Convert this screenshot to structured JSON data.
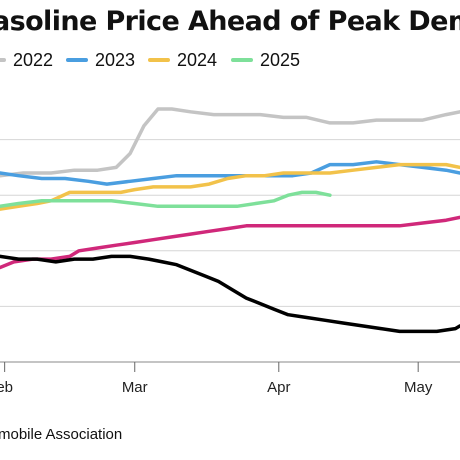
{
  "chart_data": {
    "type": "line",
    "title": "asoline Price Ahead of Peak Demand",
    "xlabel": "",
    "ylabel": "",
    "x_tick_labels": [
      "eb",
      "Mar",
      "Apr",
      "May"
    ],
    "x_tick_days": [
      30,
      58,
      89,
      119
    ],
    "x_range_days": [
      29,
      128
    ],
    "y_range": [
      0,
      100
    ],
    "grid": true,
    "legend_position": "top",
    "series": [
      {
        "name": "2022",
        "color": "#c4c4c4",
        "x": [
          29,
          34,
          40,
          45,
          50,
          54,
          57,
          60,
          63,
          66,
          70,
          75,
          80,
          85,
          90,
          95,
          100,
          105,
          110,
          115,
          120,
          125,
          128
        ],
        "y": [
          67,
          68,
          68,
          69,
          69,
          70,
          75,
          85,
          91,
          91,
          90,
          89,
          89,
          89,
          88,
          88,
          86,
          86,
          87,
          87,
          87,
          89,
          90
        ]
      },
      {
        "name": "2023",
        "color": "#4a9ee0",
        "x": [
          29,
          33,
          38,
          43,
          48,
          52,
          57,
          62,
          67,
          72,
          77,
          82,
          87,
          92,
          96,
          100,
          105,
          110,
          115,
          120,
          125,
          128
        ],
        "y": [
          68,
          67,
          66,
          66,
          65,
          64,
          65,
          66,
          67,
          67,
          67,
          67,
          67,
          67,
          68,
          71,
          71,
          72,
          71,
          70,
          69,
          68
        ]
      },
      {
        "name": "2024",
        "color": "#f2c24a",
        "x": [
          29,
          33,
          37,
          40,
          44,
          48,
          52,
          55,
          58,
          62,
          66,
          70,
          74,
          78,
          82,
          86,
          90,
          95,
          100,
          105,
          110,
          115,
          120,
          125,
          128
        ],
        "y": [
          55,
          56,
          57,
          58,
          61,
          61,
          61,
          61,
          62,
          63,
          63,
          63,
          64,
          66,
          67,
          67,
          68,
          68,
          68,
          69,
          70,
          71,
          71,
          71,
          70
        ]
      },
      {
        "name": "2025",
        "color": "#7ee09a",
        "x": [
          29,
          33,
          38,
          43,
          48,
          53,
          58,
          63,
          68,
          72,
          76,
          80,
          84,
          88,
          91,
          94,
          97,
          100
        ],
        "y": [
          56,
          57,
          58,
          58,
          58,
          58,
          57,
          56,
          56,
          56,
          56,
          56,
          57,
          58,
          60,
          61,
          61,
          60
        ]
      },
      {
        "name": "",
        "color": "#d0287a",
        "x": [
          29,
          32,
          36,
          40,
          44,
          46,
          50,
          54,
          58,
          62,
          66,
          70,
          74,
          78,
          82,
          86,
          90,
          95,
          100,
          105,
          110,
          115,
          120,
          125,
          128
        ],
        "y": [
          34,
          36,
          37,
          37,
          38,
          40,
          41,
          42,
          43,
          44,
          45,
          46,
          47,
          48,
          49,
          49,
          49,
          49,
          49,
          49,
          49,
          49,
          50,
          51,
          52
        ]
      },
      {
        "name": "",
        "color": "#000000",
        "x": [
          29,
          33,
          37,
          41,
          45,
          49,
          53,
          57,
          61,
          64,
          67,
          70,
          73,
          76,
          79,
          82,
          85,
          88,
          91,
          95,
          99,
          103,
          107,
          111,
          115,
          119,
          123,
          127,
          128
        ],
        "y": [
          38,
          37,
          37,
          36,
          37,
          37,
          38,
          38,
          37,
          36,
          35,
          33,
          31,
          29,
          26,
          23,
          21,
          19,
          17,
          16,
          15,
          14,
          13,
          12,
          11,
          11,
          11,
          12,
          13
        ]
      }
    ]
  },
  "source": "mobile Association"
}
